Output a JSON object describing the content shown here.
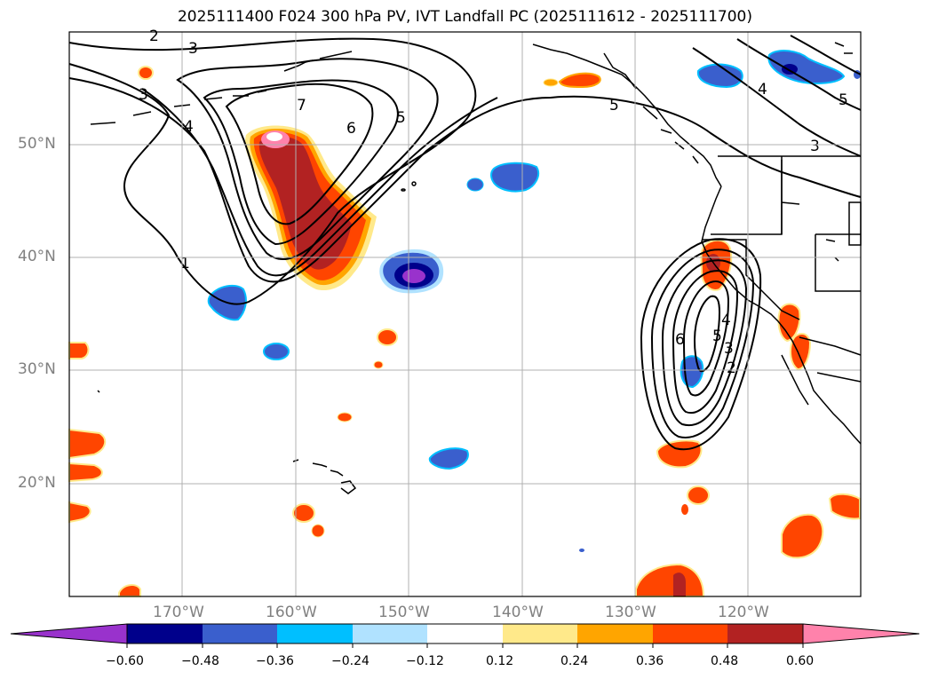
{
  "title": "2025111400 F024 300 hPa PV, IVT Landfall PC (2025111612 - 2025111700)",
  "lat_labels": [
    "50°N",
    "40°N",
    "30°N",
    "20°N"
  ],
  "lon_labels": [
    "170°W",
    "160°W",
    "150°W",
    "140°W",
    "130°W",
    "120°W"
  ],
  "colorbar": {
    "levels": [
      "−0.60",
      "−0.48",
      "−0.36",
      "−0.24",
      "−0.12",
      "0.12",
      "0.24",
      "0.36",
      "0.48",
      "0.60"
    ],
    "colors": [
      "#9932cc",
      "#00008b",
      "#3a5fcd",
      "#00bfff",
      "#b0e2ff",
      "#ffffff",
      "#ffe98a",
      "#ffa500",
      "#ff4500",
      "#b22222",
      "#ff82ab"
    ]
  },
  "contour_labels": {
    "north": [
      "2",
      "3",
      "3",
      "4",
      "1",
      "7",
      "6",
      "5",
      "5",
      "4",
      "5",
      "3"
    ],
    "east": [
      "6",
      "5",
      "4",
      "3",
      "2"
    ]
  },
  "chart_data": {
    "type": "map",
    "projection": "PlateCarree",
    "extent": {
      "lon": [
        -180,
        -110
      ],
      "lat": [
        10,
        60
      ]
    },
    "shading": "300 hPa PV principal component",
    "contours": "IVT landfall principal component"
  }
}
